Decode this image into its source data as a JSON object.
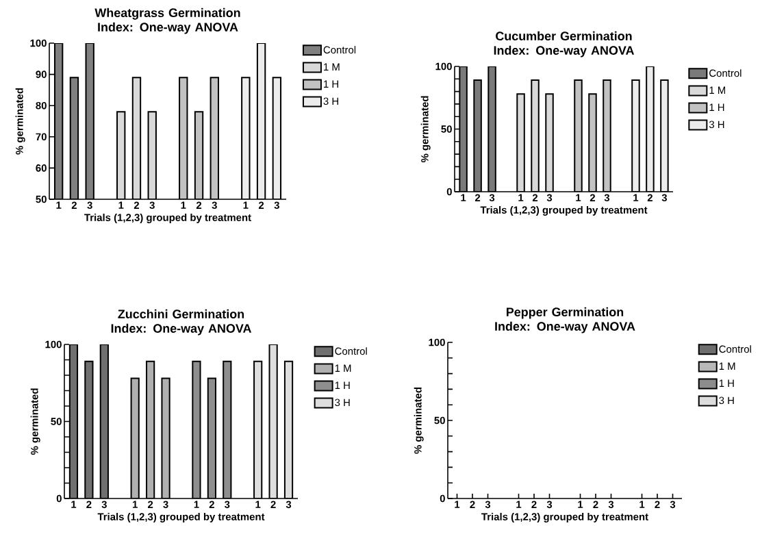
{
  "chart_data": [
    {
      "type": "bar",
      "title": "Wheatgrass Germination Index: One-way ANOVA",
      "xlabel": "Trials (1,2,3) grouped by treatment",
      "ylabel": "% germinated",
      "categories": [
        "1",
        "2",
        "3",
        null,
        "1",
        "2",
        "3",
        null,
        "1",
        "2",
        "3",
        null,
        "1",
        "2",
        "3"
      ],
      "ylim": [
        50,
        100
      ],
      "yticks": [
        50,
        60,
        70,
        80,
        90,
        100
      ],
      "legend": "top right",
      "series": [
        {
          "name": "Control",
          "color": "#808080",
          "values": [
            100,
            89,
            100,
            null,
            null,
            null,
            null,
            null,
            null,
            null,
            null,
            null,
            null,
            null,
            null
          ]
        },
        {
          "name": "1 M",
          "color": "#d9d9d9",
          "values": [
            null,
            null,
            null,
            null,
            78,
            89,
            78,
            null,
            null,
            null,
            null,
            null,
            null,
            null,
            null
          ]
        },
        {
          "name": "1 H",
          "color": "#c2c2c2",
          "values": [
            null,
            null,
            null,
            null,
            null,
            null,
            null,
            null,
            89,
            78,
            89,
            null,
            null,
            null,
            null
          ]
        },
        {
          "name": "3 H",
          "color": "#ececec",
          "values": [
            null,
            null,
            null,
            null,
            null,
            null,
            null,
            null,
            null,
            null,
            null,
            null,
            89,
            100,
            89
          ]
        }
      ]
    },
    {
      "type": "bar",
      "title": "Cucumber Germination Index: One-way ANOVA",
      "xlabel": "Trials (1,2,3) grouped by treatment",
      "ylabel": "% germinated",
      "categories": [
        "1",
        "2",
        "3",
        null,
        "1",
        "2",
        "3",
        null,
        "1",
        "2",
        "3",
        null,
        "1",
        "2",
        "3"
      ],
      "ylim": [
        0,
        100
      ],
      "yticks": [
        0,
        {
          "value": 10,
          "label": null
        },
        {
          "value": 20,
          "label": null
        },
        {
          "value": 30,
          "label": null
        },
        {
          "value": 40,
          "label": null
        },
        50,
        {
          "value": 60,
          "label": null
        },
        {
          "value": 70,
          "label": null
        },
        {
          "value": 80,
          "label": null
        },
        {
          "value": 90,
          "label": null
        },
        100
      ],
      "legend": "top right",
      "series": [
        {
          "name": "Control",
          "color": "#7a7a7a",
          "values": [
            100,
            89,
            100,
            null,
            null,
            null,
            null,
            null,
            null,
            null,
            null,
            null,
            null,
            null,
            null
          ]
        },
        {
          "name": "1 M",
          "color": "#d9d9d9",
          "values": [
            null,
            null,
            null,
            null,
            78,
            89,
            78,
            null,
            null,
            null,
            null,
            null,
            null,
            null,
            null
          ]
        },
        {
          "name": "1 H",
          "color": "#c2c2c2",
          "values": [
            null,
            null,
            null,
            null,
            null,
            null,
            null,
            null,
            89,
            78,
            89,
            null,
            null,
            null,
            null
          ]
        },
        {
          "name": "3 H",
          "color": "#ececec",
          "values": [
            null,
            null,
            null,
            null,
            null,
            null,
            null,
            null,
            null,
            null,
            null,
            null,
            89,
            100,
            89
          ]
        }
      ]
    },
    {
      "type": "bar",
      "title": "Zucchini Germination Index: One-way ANOVA",
      "xlabel": "Trials (1,2,3) grouped by treatment",
      "ylabel": "% germinated",
      "categories": [
        "1",
        "2",
        "3",
        null,
        "1",
        "2",
        "3",
        null,
        "1",
        "2",
        "3",
        null,
        "1",
        "2",
        "3"
      ],
      "ylim": [
        0,
        100
      ],
      "yticks": [
        0,
        {
          "value": 10,
          "label": null
        },
        {
          "value": 20,
          "label": null
        },
        {
          "value": 30,
          "label": null
        },
        {
          "value": 40,
          "label": null
        },
        50,
        {
          "value": 60,
          "label": null
        },
        {
          "value": 70,
          "label": null
        },
        {
          "value": 80,
          "label": null
        },
        {
          "value": 90,
          "label": null
        },
        100
      ],
      "legend": "top right",
      "series": [
        {
          "name": "Control",
          "color": "#707070",
          "values": [
            100,
            89,
            100,
            null,
            null,
            null,
            null,
            null,
            null,
            null,
            null,
            null,
            null,
            null,
            null
          ]
        },
        {
          "name": "1 M",
          "color": "#b0b0b0",
          "values": [
            null,
            null,
            null,
            null,
            78,
            89,
            78,
            null,
            null,
            null,
            null,
            null,
            null,
            null,
            null
          ]
        },
        {
          "name": "1 H",
          "color": "#8e8e8e",
          "values": [
            null,
            null,
            null,
            null,
            null,
            null,
            null,
            null,
            89,
            78,
            89,
            null,
            null,
            null,
            null
          ]
        },
        {
          "name": "3 H",
          "color": "#dedede",
          "values": [
            null,
            null,
            null,
            null,
            null,
            null,
            null,
            null,
            null,
            null,
            null,
            null,
            89,
            100,
            89
          ]
        }
      ]
    },
    {
      "type": "bar",
      "title": "Pepper Germination Index: One-way ANOVA",
      "xlabel": "Trials (1,2,3) grouped by treatment",
      "ylabel": "% germinated",
      "categories": [
        "1",
        "2",
        "3",
        null,
        "1",
        "2",
        "3",
        null,
        "1",
        "2",
        "3",
        null,
        "1",
        "2",
        "3"
      ],
      "ylim": [
        0,
        100
      ],
      "yticks": [
        0,
        {
          "value": 10,
          "label": null
        },
        {
          "value": 20,
          "label": null
        },
        {
          "value": 30,
          "label": null
        },
        {
          "value": 40,
          "label": null
        },
        50,
        {
          "value": 60,
          "label": null
        },
        {
          "value": 70,
          "label": null
        },
        {
          "value": 80,
          "label": null
        },
        {
          "value": 90,
          "label": null
        },
        100
      ],
      "legend": "top right",
      "series": [
        {
          "name": "Control",
          "color": "#6e6e6e",
          "values": [
            null,
            null,
            null,
            null,
            null,
            null,
            null,
            null,
            null,
            null,
            null,
            null,
            null,
            null,
            null
          ]
        },
        {
          "name": "1 M",
          "color": "#b8b8b8",
          "values": [
            null,
            null,
            null,
            null,
            null,
            null,
            null,
            null,
            null,
            null,
            null,
            null,
            null,
            null,
            null
          ]
        },
        {
          "name": "1 H",
          "color": "#8c8c8c",
          "values": [
            null,
            null,
            null,
            null,
            null,
            null,
            null,
            null,
            null,
            null,
            null,
            null,
            null,
            null,
            null
          ]
        },
        {
          "name": "3 H",
          "color": "#dcdcdc",
          "values": [
            null,
            null,
            null,
            null,
            null,
            null,
            null,
            null,
            null,
            null,
            null,
            null,
            null,
            null,
            null
          ]
        }
      ]
    }
  ]
}
